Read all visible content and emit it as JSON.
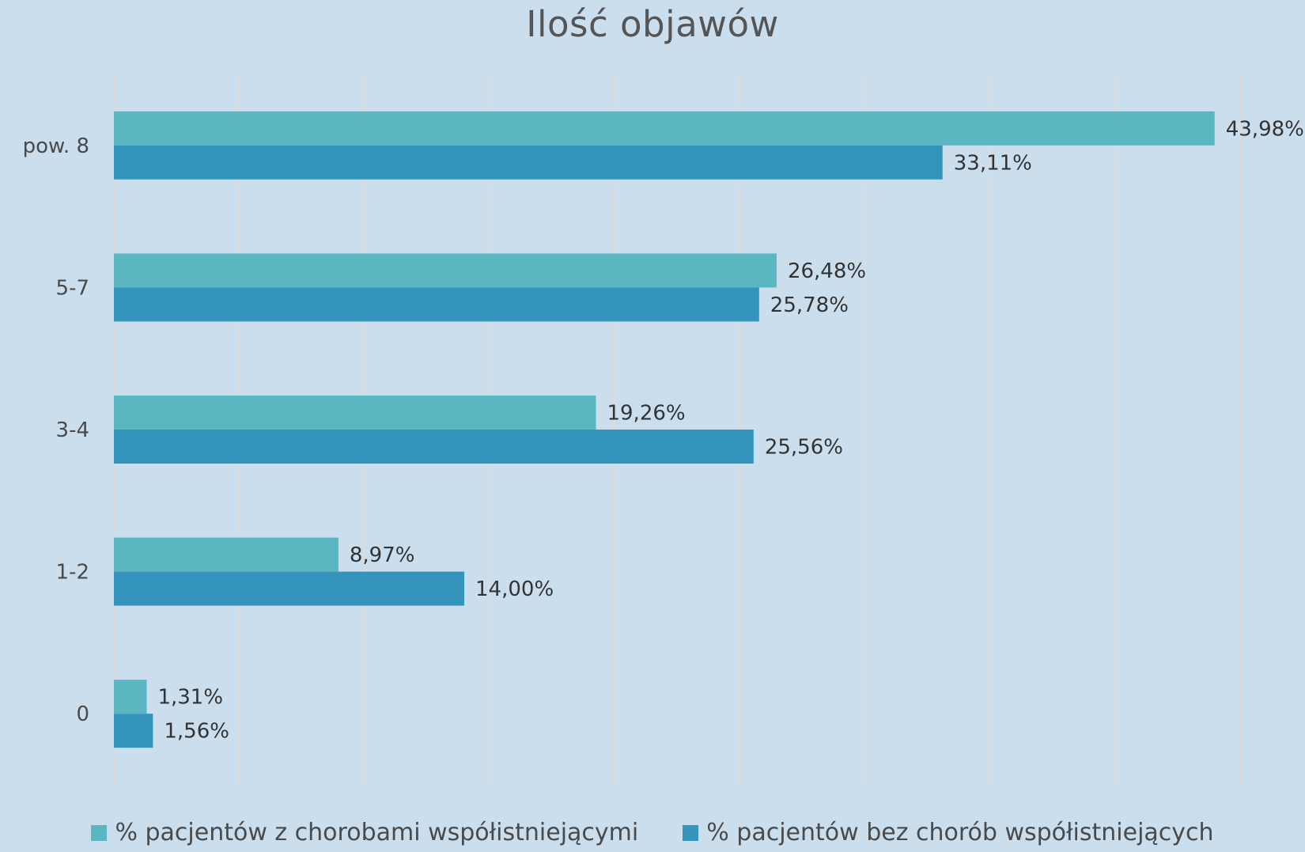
{
  "chart_data": {
    "type": "bar",
    "orientation": "horizontal",
    "title": "Ilość objawów",
    "categories": [
      "pow. 8",
      "5-7",
      "3-4",
      "1-2",
      "0"
    ],
    "series": [
      {
        "name": "% pacjentów z chorobami współistniejącymi",
        "color": "#5ab6c1",
        "values": [
          43.98,
          26.48,
          19.26,
          8.97,
          1.31
        ],
        "labels": [
          "43,98%",
          "26,48%",
          "19,26%",
          "8,97%",
          "1,31%"
        ]
      },
      {
        "name": "% pacjentów bez chorób współistniejących",
        "color": "#3494bc",
        "values": [
          33.11,
          25.78,
          25.56,
          14.0,
          1.56
        ],
        "labels": [
          "33,11%",
          "25,78%",
          "25,56%",
          "14,00%",
          "1,56%"
        ]
      }
    ],
    "xlim": [
      0,
      45
    ],
    "grid": true,
    "gridlines_at": [
      0,
      5,
      10,
      15,
      20,
      25,
      30,
      35,
      40,
      45
    ],
    "x_tick_labels_visible": false,
    "legend_position": "bottom"
  }
}
